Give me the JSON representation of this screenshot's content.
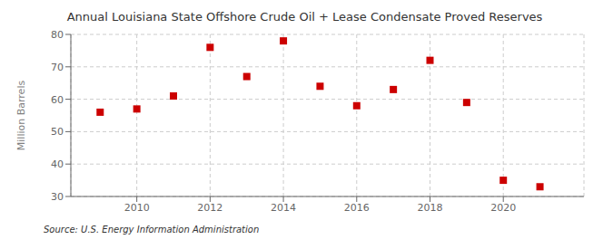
{
  "chart_data": {
    "type": "scatter",
    "title": "Annual Louisiana State Offshore Crude Oil + Lease Condensate Proved Reserves",
    "y_label": "Million Barrels",
    "annotations": [
      "Source: U.S. Energy Information Administration"
    ],
    "x": [
      2009,
      2010,
      2011,
      2012,
      2013,
      2014,
      2015,
      2016,
      2017,
      2018,
      2019,
      2020,
      2021
    ],
    "values": [
      56.0,
      57.0,
      61.0,
      76.0,
      67.0,
      78.0,
      64.0,
      58.0,
      63.0,
      72.0,
      59.0,
      35.0,
      33.0
    ],
    "xlim": [
      2008.2,
      2022.2
    ],
    "xticks": [
      2010,
      2012,
      2014,
      2016,
      2018,
      2020
    ],
    "ylim": [
      30,
      80
    ],
    "yticks": [
      30,
      40,
      50,
      60,
      70,
      80
    ],
    "color": "#cc0000",
    "marker": "square",
    "grid": true
  }
}
